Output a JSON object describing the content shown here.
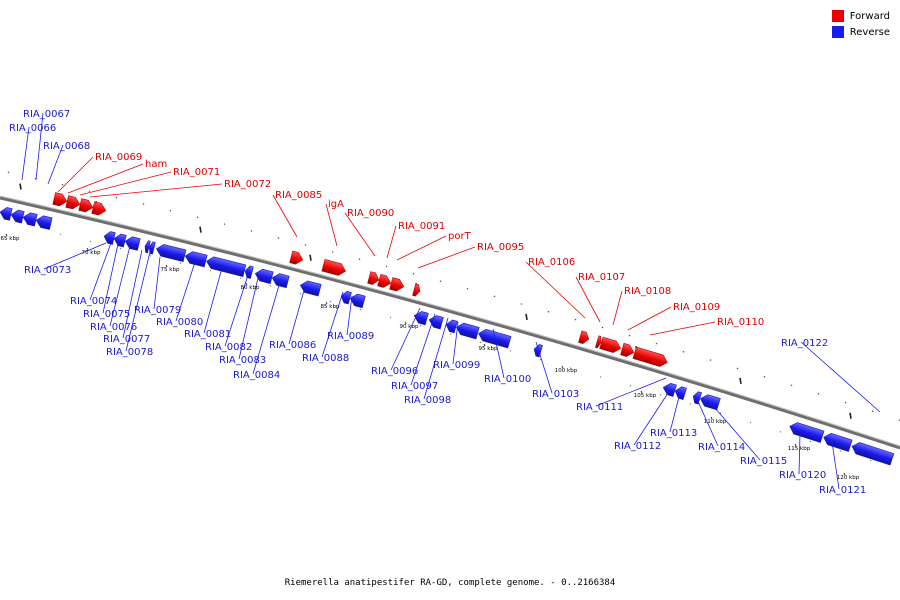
{
  "legend": {
    "forward_label": "Forward",
    "reverse_label": "Reverse",
    "forward_color": "#ee0000",
    "reverse_color": "#1a1aee"
  },
  "caption": "Riemerella anatipestifer RA-GD, complete genome. - 0..2166384",
  "colors": {
    "forward": "#ee0000",
    "reverse": "#1a1aee",
    "backbone": "#888888"
  },
  "ticks": [
    "65 kbp",
    "70 kbp",
    "75 kbp",
    "80 kbp",
    "85 kbp",
    "90 kbp",
    "95 kbp",
    "100 kbp",
    "105 kbp",
    "110 kbp",
    "115 kbp",
    "120 kbp"
  ],
  "forward_genes": [
    "RIA_0069",
    "ham",
    "RIA_0071",
    "RIA_0072",
    "RIA_0085",
    "igA",
    "RIA_0090",
    "RIA_0091",
    "porT",
    "RIA_0095",
    "RIA_0106",
    "RIA_0107",
    "RIA_0108",
    "RIA_0109",
    "RIA_0110"
  ],
  "reverse_genes": [
    "RIA_0067",
    "RIA_0066",
    "RIA_0068",
    "RIA_0073",
    "RIA_0074",
    "RIA_0075",
    "RIA_0076",
    "RIA_0077",
    "RIA_0078",
    "RIA_0079",
    "RIA_0080",
    "RIA_0081",
    "RIA_0082",
    "RIA_0083",
    "RIA_0084",
    "RIA_0086",
    "RIA_0088",
    "RIA_0089",
    "RIA_0096",
    "RIA_0097",
    "RIA_0098",
    "RIA_0099",
    "RIA_0100",
    "RIA_0103",
    "RIA_0111",
    "RIA_0112",
    "RIA_0113",
    "RIA_0114",
    "RIA_0115",
    "RIA_0120",
    "RIA_0121",
    "RIA_0122"
  ]
}
